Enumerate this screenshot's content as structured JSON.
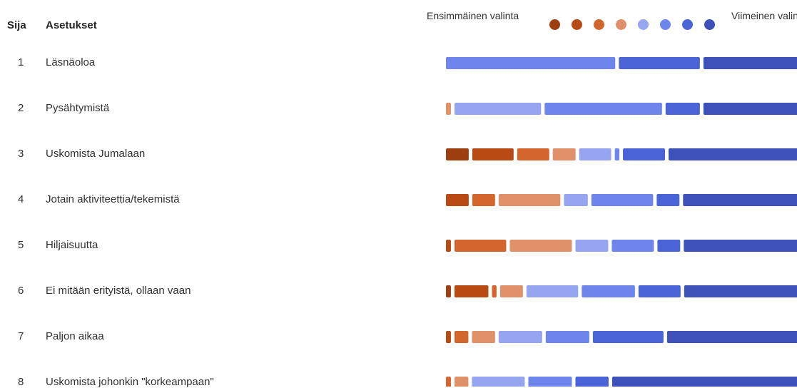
{
  "chart_data": {
    "type": "bar",
    "headers": {
      "rank": "Sija",
      "option": "Asetukset"
    },
    "legend": {
      "first_label": "Ensimmäinen valinta",
      "last_label": "Viimeinen valinta",
      "colors": [
        "#9e3f12",
        "#ba4a14",
        "#d4652d",
        "#e0916a",
        "#95a5f0",
        "#6e86eb",
        "#4a64d8",
        "#3d51b8"
      ]
    },
    "rows": [
      {
        "rank": "1",
        "label": "Läsnäoloa",
        "segments": [
          0.466,
          0.228,
          0.306
        ]
      },
      {
        "rank": "2",
        "label": "Pysähtymistä",
        "segments": [
          0.023,
          0.243,
          0.326,
          0.102,
          0.306
        ]
      },
      {
        "rank": "3",
        "label": "Uskomista Jumalaan",
        "segments": [
          0.071,
          0.121,
          0.096,
          0.071,
          0.096,
          0.022,
          0.123,
          0.4
        ]
      },
      {
        "rank": "4",
        "label": "Jotain aktiviteettia/tekemistä",
        "segments": [
          0.071,
          0.071,
          0.176,
          0.074,
          0.176,
          0.071,
          0.361
        ]
      },
      {
        "rank": "5",
        "label": "Hiljaisuutta",
        "segments": [
          0.023,
          0.149,
          0.177,
          0.098,
          0.123,
          0.071,
          0.359
        ]
      },
      {
        "rank": "6",
        "label": "Ei mitään erityistä, ollaan vaan",
        "segments": [
          0.023,
          0.101,
          0.022,
          0.071,
          0.149,
          0.153,
          0.123,
          0.358
        ]
      },
      {
        "rank": "7",
        "label": "Paljon aikaa",
        "segments": [
          0.023,
          0.047,
          0.072,
          0.127,
          0.127,
          0.2,
          0.404
        ]
      },
      {
        "rank": "8",
        "label": "Uskomista johonkin \"korkeampaan\"",
        "segments": [
          0.023,
          0.047,
          0.152,
          0.127,
          0.099,
          0.552
        ]
      }
    ]
  }
}
